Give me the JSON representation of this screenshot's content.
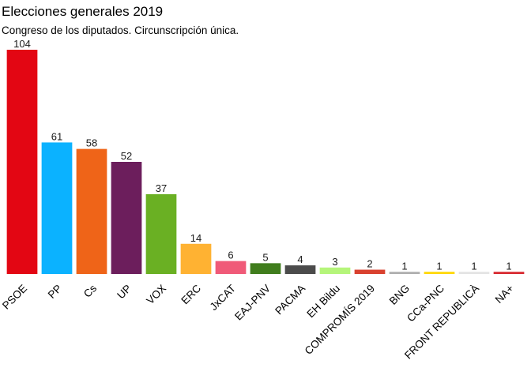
{
  "chart_data": {
    "type": "bar",
    "title": "Elecciones generales 2019",
    "subtitle": "Congreso de los diputados. Circunscripción única.",
    "categories": [
      "PSOE",
      "PP",
      "Cs",
      "UP",
      "VOX",
      "ERC",
      "JxCAT",
      "EAJ-PNV",
      "PACMA",
      "EH Bildu",
      "COMPROMÍS 2019",
      "BNG",
      "CCa-PNC",
      "FRONT REPUBLICÀ",
      "NA+"
    ],
    "values": [
      104,
      61,
      58,
      52,
      37,
      14,
      6,
      5,
      4,
      3,
      2,
      1,
      1,
      1,
      1
    ],
    "colors": [
      "#e30613",
      "#0bb2ff",
      "#ef6418",
      "#6c1e5c",
      "#6ab023",
      "#ffb232",
      "#f05a78",
      "#407d1d",
      "#4b4b4b",
      "#b5f57a",
      "#d9412f",
      "#aeaeae",
      "#ffd700",
      "#e3e3e3",
      "#d7282f"
    ],
    "ylim": [
      0,
      104
    ],
    "grid": false,
    "legend": "none"
  }
}
